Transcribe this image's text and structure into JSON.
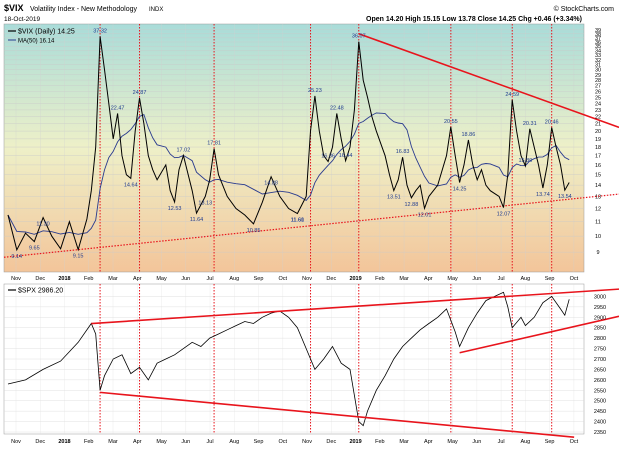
{
  "header": {
    "title": "$VIX",
    "subtitle": "Volatility Index - New Methodology",
    "exchange": "INDX",
    "date": "18-Oct-2019",
    "ohlc": "Open 14.20  High 15.15  Low 13.78  Close 14.25  Chg +0.46 (+3.34%)",
    "watermark": "© StockCharts.com"
  },
  "legend": {
    "vix": "$VIX (Daily) 14.25",
    "ma": "MA(50) 16.14",
    "spx": "$SPX 2986.20"
  },
  "colors": {
    "price": "#000000",
    "ma": "#2a3b8f",
    "trend": "#e8141c",
    "grad_top": "#a9dcd9",
    "grad_mid": "#eef0c8",
    "grad_bot": "#f3c59a"
  },
  "chart_data": [
    {
      "type": "line",
      "name": "VIX",
      "y_scale": "log",
      "ylim": [
        8,
        40
      ],
      "y_ticks": [
        "9",
        "10",
        "11",
        "12",
        "13",
        "14",
        "15",
        "16",
        "17",
        "18",
        "19",
        "20",
        "21",
        "22",
        "23",
        "24",
        "25",
        "26",
        "27",
        "28",
        "29",
        "30",
        "31",
        "32",
        "33",
        "34",
        "35",
        "36",
        "37",
        "38",
        "39"
      ],
      "x_ticks": [
        "Nov",
        "Dec",
        "2018",
        "Feb",
        "Mar",
        "Apr",
        "May",
        "Jun",
        "Jul",
        "Aug",
        "Sep",
        "Oct",
        "Nov",
        "Dec",
        "2019",
        "Feb",
        "Mar",
        "Apr",
        "May",
        "Jun",
        "Jul",
        "Aug",
        "Sep",
        "Oct"
      ],
      "points": [
        [
          0,
          11.5
        ],
        [
          2,
          9.14
        ],
        [
          4,
          10.2
        ],
        [
          6,
          9.65
        ],
        [
          8,
          11.3
        ],
        [
          10,
          10.0
        ],
        [
          12,
          9.2
        ],
        [
          14,
          11.0
        ],
        [
          16,
          9.15
        ],
        [
          18,
          11.2
        ],
        [
          19,
          13.5
        ],
        [
          20,
          18
        ],
        [
          21,
          37.32
        ],
        [
          22,
          30
        ],
        [
          23,
          24
        ],
        [
          24,
          19
        ],
        [
          25,
          22.47
        ],
        [
          26,
          17
        ],
        [
          27,
          15
        ],
        [
          28,
          14.64
        ],
        [
          29,
          20
        ],
        [
          30,
          24.87
        ],
        [
          31,
          21
        ],
        [
          32,
          17
        ],
        [
          33,
          15.5
        ],
        [
          34,
          14.5
        ],
        [
          36,
          16
        ],
        [
          37,
          13.5
        ],
        [
          38,
          12.53
        ],
        [
          39,
          15.5
        ],
        [
          40,
          17.02
        ],
        [
          42,
          13.5
        ],
        [
          43,
          11.64
        ],
        [
          45,
          13.0
        ],
        [
          46,
          14.5
        ],
        [
          47,
          17.81
        ],
        [
          48,
          15
        ],
        [
          50,
          13
        ],
        [
          52,
          12
        ],
        [
          54,
          11.5
        ],
        [
          56,
          10.85
        ],
        [
          58,
          12.5
        ],
        [
          60,
          14.8
        ],
        [
          62,
          13.0
        ],
        [
          64,
          12.0
        ],
        [
          66,
          11.61
        ],
        [
          68,
          13
        ],
        [
          69,
          20
        ],
        [
          70,
          25.23
        ],
        [
          71,
          20
        ],
        [
          72,
          17
        ],
        [
          73,
          16.36
        ],
        [
          74,
          18
        ],
        [
          75,
          22.48
        ],
        [
          76,
          19
        ],
        [
          77,
          16.44
        ],
        [
          78,
          18
        ],
        [
          79,
          23
        ],
        [
          80,
          36.07
        ],
        [
          81,
          28
        ],
        [
          82,
          25
        ],
        [
          83,
          22
        ],
        [
          84,
          20
        ],
        [
          86,
          17
        ],
        [
          87,
          15
        ],
        [
          88,
          13.51
        ],
        [
          89,
          14.5
        ],
        [
          90,
          16.83
        ],
        [
          91,
          14
        ],
        [
          92,
          12.88
        ],
        [
          93,
          13.5
        ],
        [
          94,
          14
        ],
        [
          95,
          12.01
        ],
        [
          96,
          13
        ],
        [
          98,
          14
        ],
        [
          100,
          17
        ],
        [
          101,
          20.55
        ],
        [
          102,
          17
        ],
        [
          103,
          14.25
        ],
        [
          104,
          16
        ],
        [
          105,
          18.86
        ],
        [
          106,
          16
        ],
        [
          107,
          14.5
        ],
        [
          108,
          15.5
        ],
        [
          109,
          14
        ],
        [
          110,
          13.5
        ],
        [
          112,
          13
        ],
        [
          113,
          12.07
        ],
        [
          114,
          15
        ],
        [
          115,
          24.59
        ],
        [
          116,
          20
        ],
        [
          117,
          17
        ],
        [
          118,
          15.89
        ],
        [
          119,
          20.31
        ],
        [
          120,
          18
        ],
        [
          121,
          16
        ],
        [
          122,
          13.74
        ],
        [
          123,
          16
        ],
        [
          124,
          20.46
        ],
        [
          125,
          18
        ],
        [
          126,
          16
        ],
        [
          127,
          13.54
        ],
        [
          128,
          14.25
        ]
      ],
      "labels": [
        "9.14",
        "9.65",
        "11.30",
        "11.60",
        "13.13",
        "9.15",
        "37.32",
        "22.47",
        "14.64",
        "24.87",
        "17.02",
        "12.53",
        "11.64",
        "17.81",
        "10.85",
        "14.88",
        "11.61",
        "25.23",
        "16.36",
        "22.48",
        "16.44",
        "36.07",
        "13.51",
        "16.83",
        "12.88",
        "12.01",
        "20.55",
        "14.25",
        "18.86",
        "12.07",
        "24.59",
        "15.89",
        "20.31",
        "13.74",
        "20.46",
        "13.54"
      ]
    },
    {
      "type": "line",
      "name": "$SPX",
      "ylim": [
        2350,
        3050
      ],
      "y_ticks": [
        "2350",
        "2400",
        "2450",
        "2500",
        "2550",
        "2600",
        "2650",
        "2700",
        "2750",
        "2800",
        "2850",
        "2900",
        "2950",
        "3000"
      ],
      "x_ticks": [
        "Nov",
        "Dec",
        "2018",
        "Feb",
        "Mar",
        "Apr",
        "May",
        "Jun",
        "Jul",
        "Aug",
        "Sep",
        "Oct",
        "Nov",
        "Dec",
        "2019",
        "Feb",
        "Mar",
        "Apr",
        "May",
        "Jun",
        "Jul",
        "Aug",
        "Sep",
        "Oct"
      ],
      "points": [
        [
          0,
          2580
        ],
        [
          4,
          2600
        ],
        [
          8,
          2650
        ],
        [
          12,
          2690
        ],
        [
          16,
          2780
        ],
        [
          19,
          2870
        ],
        [
          20,
          2820
        ],
        [
          21,
          2550
        ],
        [
          22,
          2620
        ],
        [
          24,
          2700
        ],
        [
          26,
          2720
        ],
        [
          28,
          2630
        ],
        [
          30,
          2660
        ],
        [
          32,
          2600
        ],
        [
          34,
          2680
        ],
        [
          36,
          2700
        ],
        [
          38,
          2720
        ],
        [
          40,
          2750
        ],
        [
          42,
          2780
        ],
        [
          44,
          2760
        ],
        [
          46,
          2800
        ],
        [
          48,
          2820
        ],
        [
          50,
          2840
        ],
        [
          52,
          2860
        ],
        [
          54,
          2880
        ],
        [
          56,
          2870
        ],
        [
          58,
          2900
        ],
        [
          60,
          2920
        ],
        [
          62,
          2930
        ],
        [
          64,
          2900
        ],
        [
          66,
          2850
        ],
        [
          68,
          2750
        ],
        [
          70,
          2650
        ],
        [
          72,
          2700
        ],
        [
          74,
          2760
        ],
        [
          76,
          2680
        ],
        [
          78,
          2650
        ],
        [
          80,
          2400
        ],
        [
          81,
          2380
        ],
        [
          82,
          2450
        ],
        [
          84,
          2550
        ],
        [
          86,
          2620
        ],
        [
          88,
          2700
        ],
        [
          90,
          2760
        ],
        [
          92,
          2800
        ],
        [
          94,
          2840
        ],
        [
          96,
          2870
        ],
        [
          98,
          2900
        ],
        [
          100,
          2940
        ],
        [
          102,
          2830
        ],
        [
          103,
          2760
        ],
        [
          105,
          2850
        ],
        [
          107,
          2920
        ],
        [
          109,
          2980
        ],
        [
          111,
          3000
        ],
        [
          113,
          3020
        ],
        [
          114,
          2950
        ],
        [
          115,
          2850
        ],
        [
          117,
          2900
        ],
        [
          118,
          2860
        ],
        [
          120,
          2900
        ],
        [
          122,
          2970
        ],
        [
          124,
          3000
        ],
        [
          126,
          2940
        ],
        [
          127,
          2910
        ],
        [
          128,
          2986
        ]
      ]
    }
  ]
}
